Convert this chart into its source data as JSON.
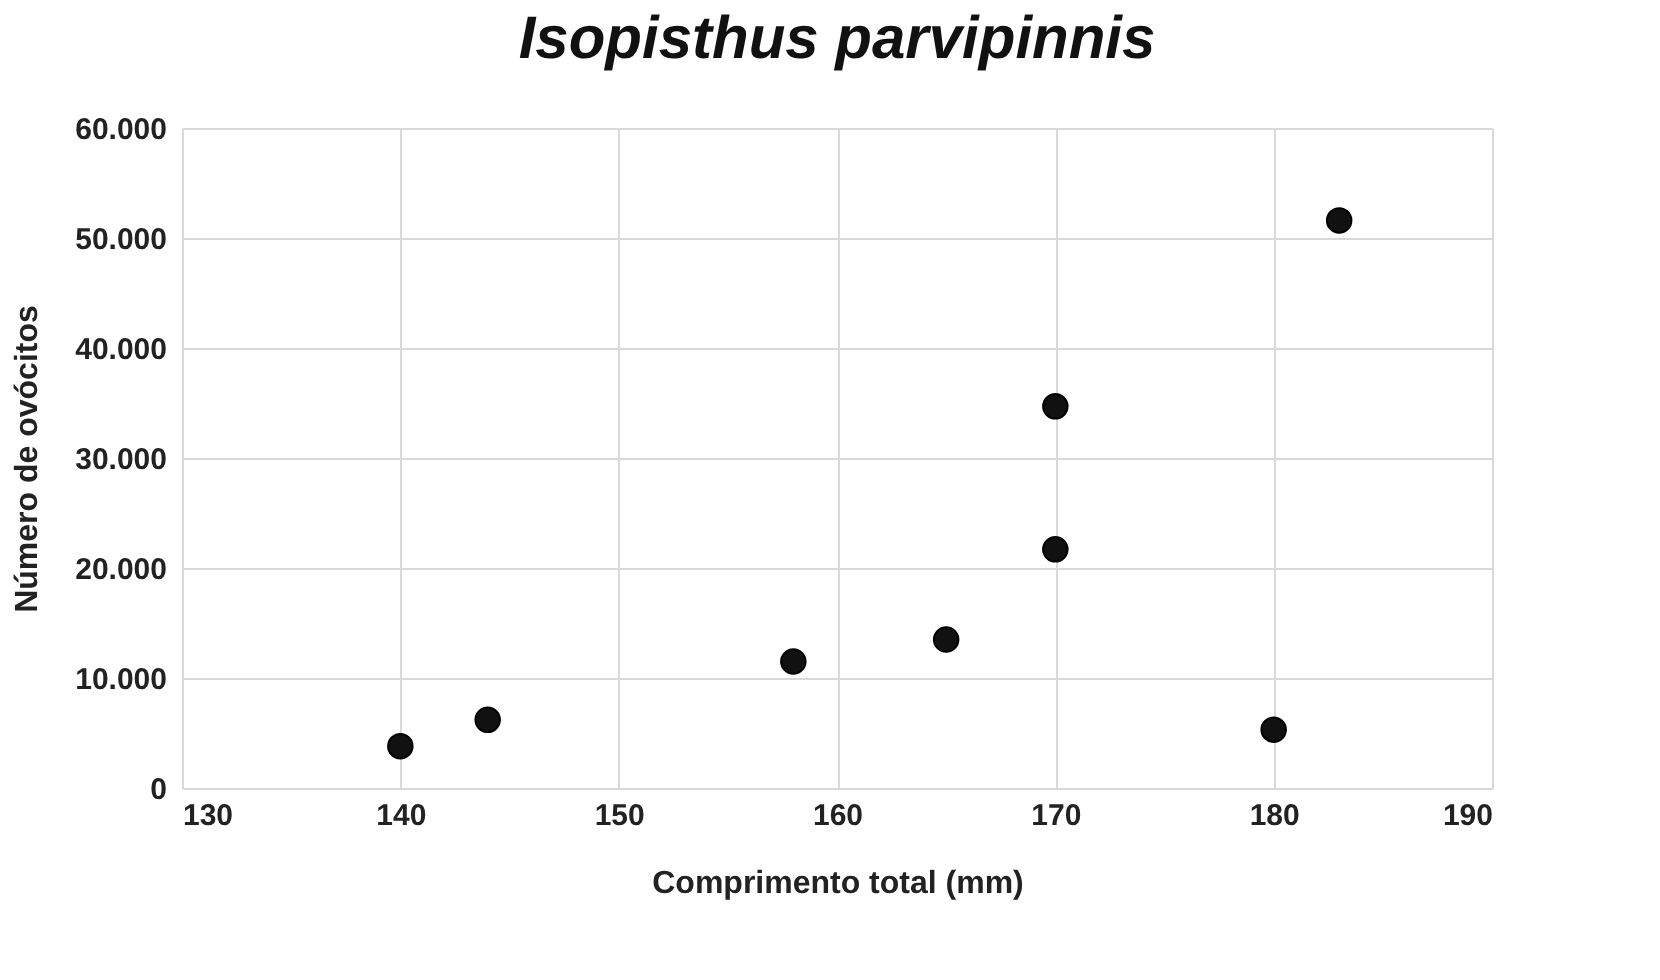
{
  "chart_data": {
    "type": "scatter",
    "title": "Isopisthus parvipinnis",
    "xlabel": "Comprimento total (mm)",
    "ylabel": "Número de ovócitos",
    "x": [
      140,
      144,
      158,
      165,
      170,
      170,
      180,
      183
    ],
    "series": [
      {
        "color": "#111111",
        "values": [
          3800,
          6200,
          11500,
          13500,
          21700,
          34700,
          5300,
          51600
        ]
      }
    ],
    "xlim": [
      130,
      190
    ],
    "xticks": [
      130,
      140,
      150,
      160,
      170,
      180,
      190
    ],
    "ylim": [
      0,
      60000
    ],
    "yticks": [
      0,
      {
        "value": 10000,
        "label": "10.000"
      },
      {
        "value": 20000,
        "label": "20.000"
      },
      {
        "value": 30000,
        "label": "30.000"
      },
      {
        "value": 40000,
        "label": "40.000"
      },
      {
        "value": 50000,
        "label": "50.000"
      },
      {
        "value": 60000,
        "label": "60.000"
      }
    ],
    "grid": true,
    "marker": "circle"
  }
}
